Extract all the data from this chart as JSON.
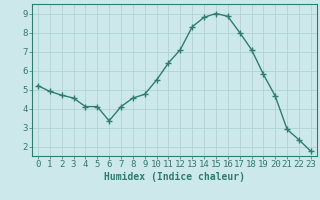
{
  "x": [
    0,
    1,
    2,
    3,
    4,
    5,
    6,
    7,
    8,
    9,
    10,
    11,
    12,
    13,
    14,
    15,
    16,
    17,
    18,
    19,
    20,
    21,
    22,
    23
  ],
  "y": [
    5.2,
    4.9,
    4.7,
    4.55,
    4.1,
    4.1,
    3.35,
    4.1,
    4.55,
    4.75,
    5.5,
    6.4,
    7.1,
    8.3,
    8.8,
    9.0,
    8.85,
    8.0,
    7.1,
    5.8,
    4.65,
    2.9,
    2.35,
    1.75
  ],
  "line_color": "#2e7d6e",
  "marker": "+",
  "markersize": 4,
  "linewidth": 1.0,
  "bg_color": "#cce8ea",
  "grid_color_major": "#aacfcf",
  "grid_color_minor": "#bbdcdc",
  "xlabel": "Humidex (Indice chaleur)",
  "xlabel_fontsize": 7,
  "tick_fontsize": 6.5,
  "ylim": [
    1.5,
    9.5
  ],
  "xlim": [
    -0.5,
    23.5
  ],
  "yticks": [
    2,
    3,
    4,
    5,
    6,
    7,
    8,
    9
  ],
  "xticks": [
    0,
    1,
    2,
    3,
    4,
    5,
    6,
    7,
    8,
    9,
    10,
    11,
    12,
    13,
    14,
    15,
    16,
    17,
    18,
    19,
    20,
    21,
    22,
    23
  ]
}
